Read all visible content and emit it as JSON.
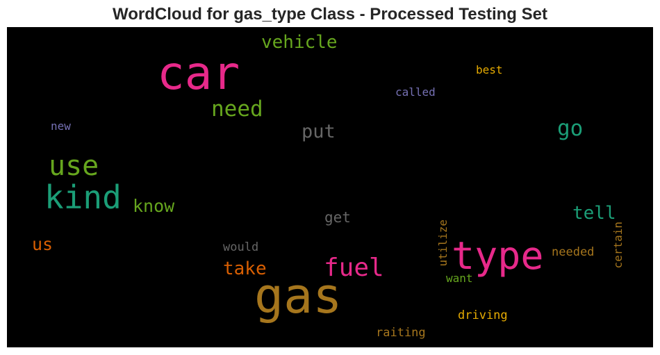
{
  "title": "WordCloud for gas_type Class - Processed Testing Set",
  "words": [
    {
      "text": "car",
      "color": "#e7298a"
    },
    {
      "text": "gas",
      "color": "#a6761d"
    },
    {
      "text": "type",
      "color": "#e7298a"
    },
    {
      "text": "kind",
      "color": "#1b9e77"
    },
    {
      "text": "use",
      "color": "#66a61e"
    },
    {
      "text": "fuel",
      "color": "#e7298a"
    },
    {
      "text": "need",
      "color": "#66a61e"
    },
    {
      "text": "vehicle",
      "color": "#66a61e"
    },
    {
      "text": "go",
      "color": "#1b9e77"
    },
    {
      "text": "put",
      "color": "#666666"
    },
    {
      "text": "know",
      "color": "#66a61e"
    },
    {
      "text": "tell",
      "color": "#1b9e77"
    },
    {
      "text": "take",
      "color": "#d95f02"
    },
    {
      "text": "us",
      "color": "#d95f02"
    },
    {
      "text": "get",
      "color": "#666666"
    },
    {
      "text": "best",
      "color": "#e6ab02"
    },
    {
      "text": "called",
      "color": "#7570b3"
    },
    {
      "text": "new",
      "color": "#7570b3"
    },
    {
      "text": "would",
      "color": "#666666"
    },
    {
      "text": "utilize",
      "color": "#a6761d"
    },
    {
      "text": "want",
      "color": "#66a61e"
    },
    {
      "text": "needed",
      "color": "#a6761d"
    },
    {
      "text": "certain",
      "color": "#a6761d"
    },
    {
      "text": "driving",
      "color": "#e6ab02"
    },
    {
      "text": "raiting",
      "color": "#a6761d"
    }
  ]
}
